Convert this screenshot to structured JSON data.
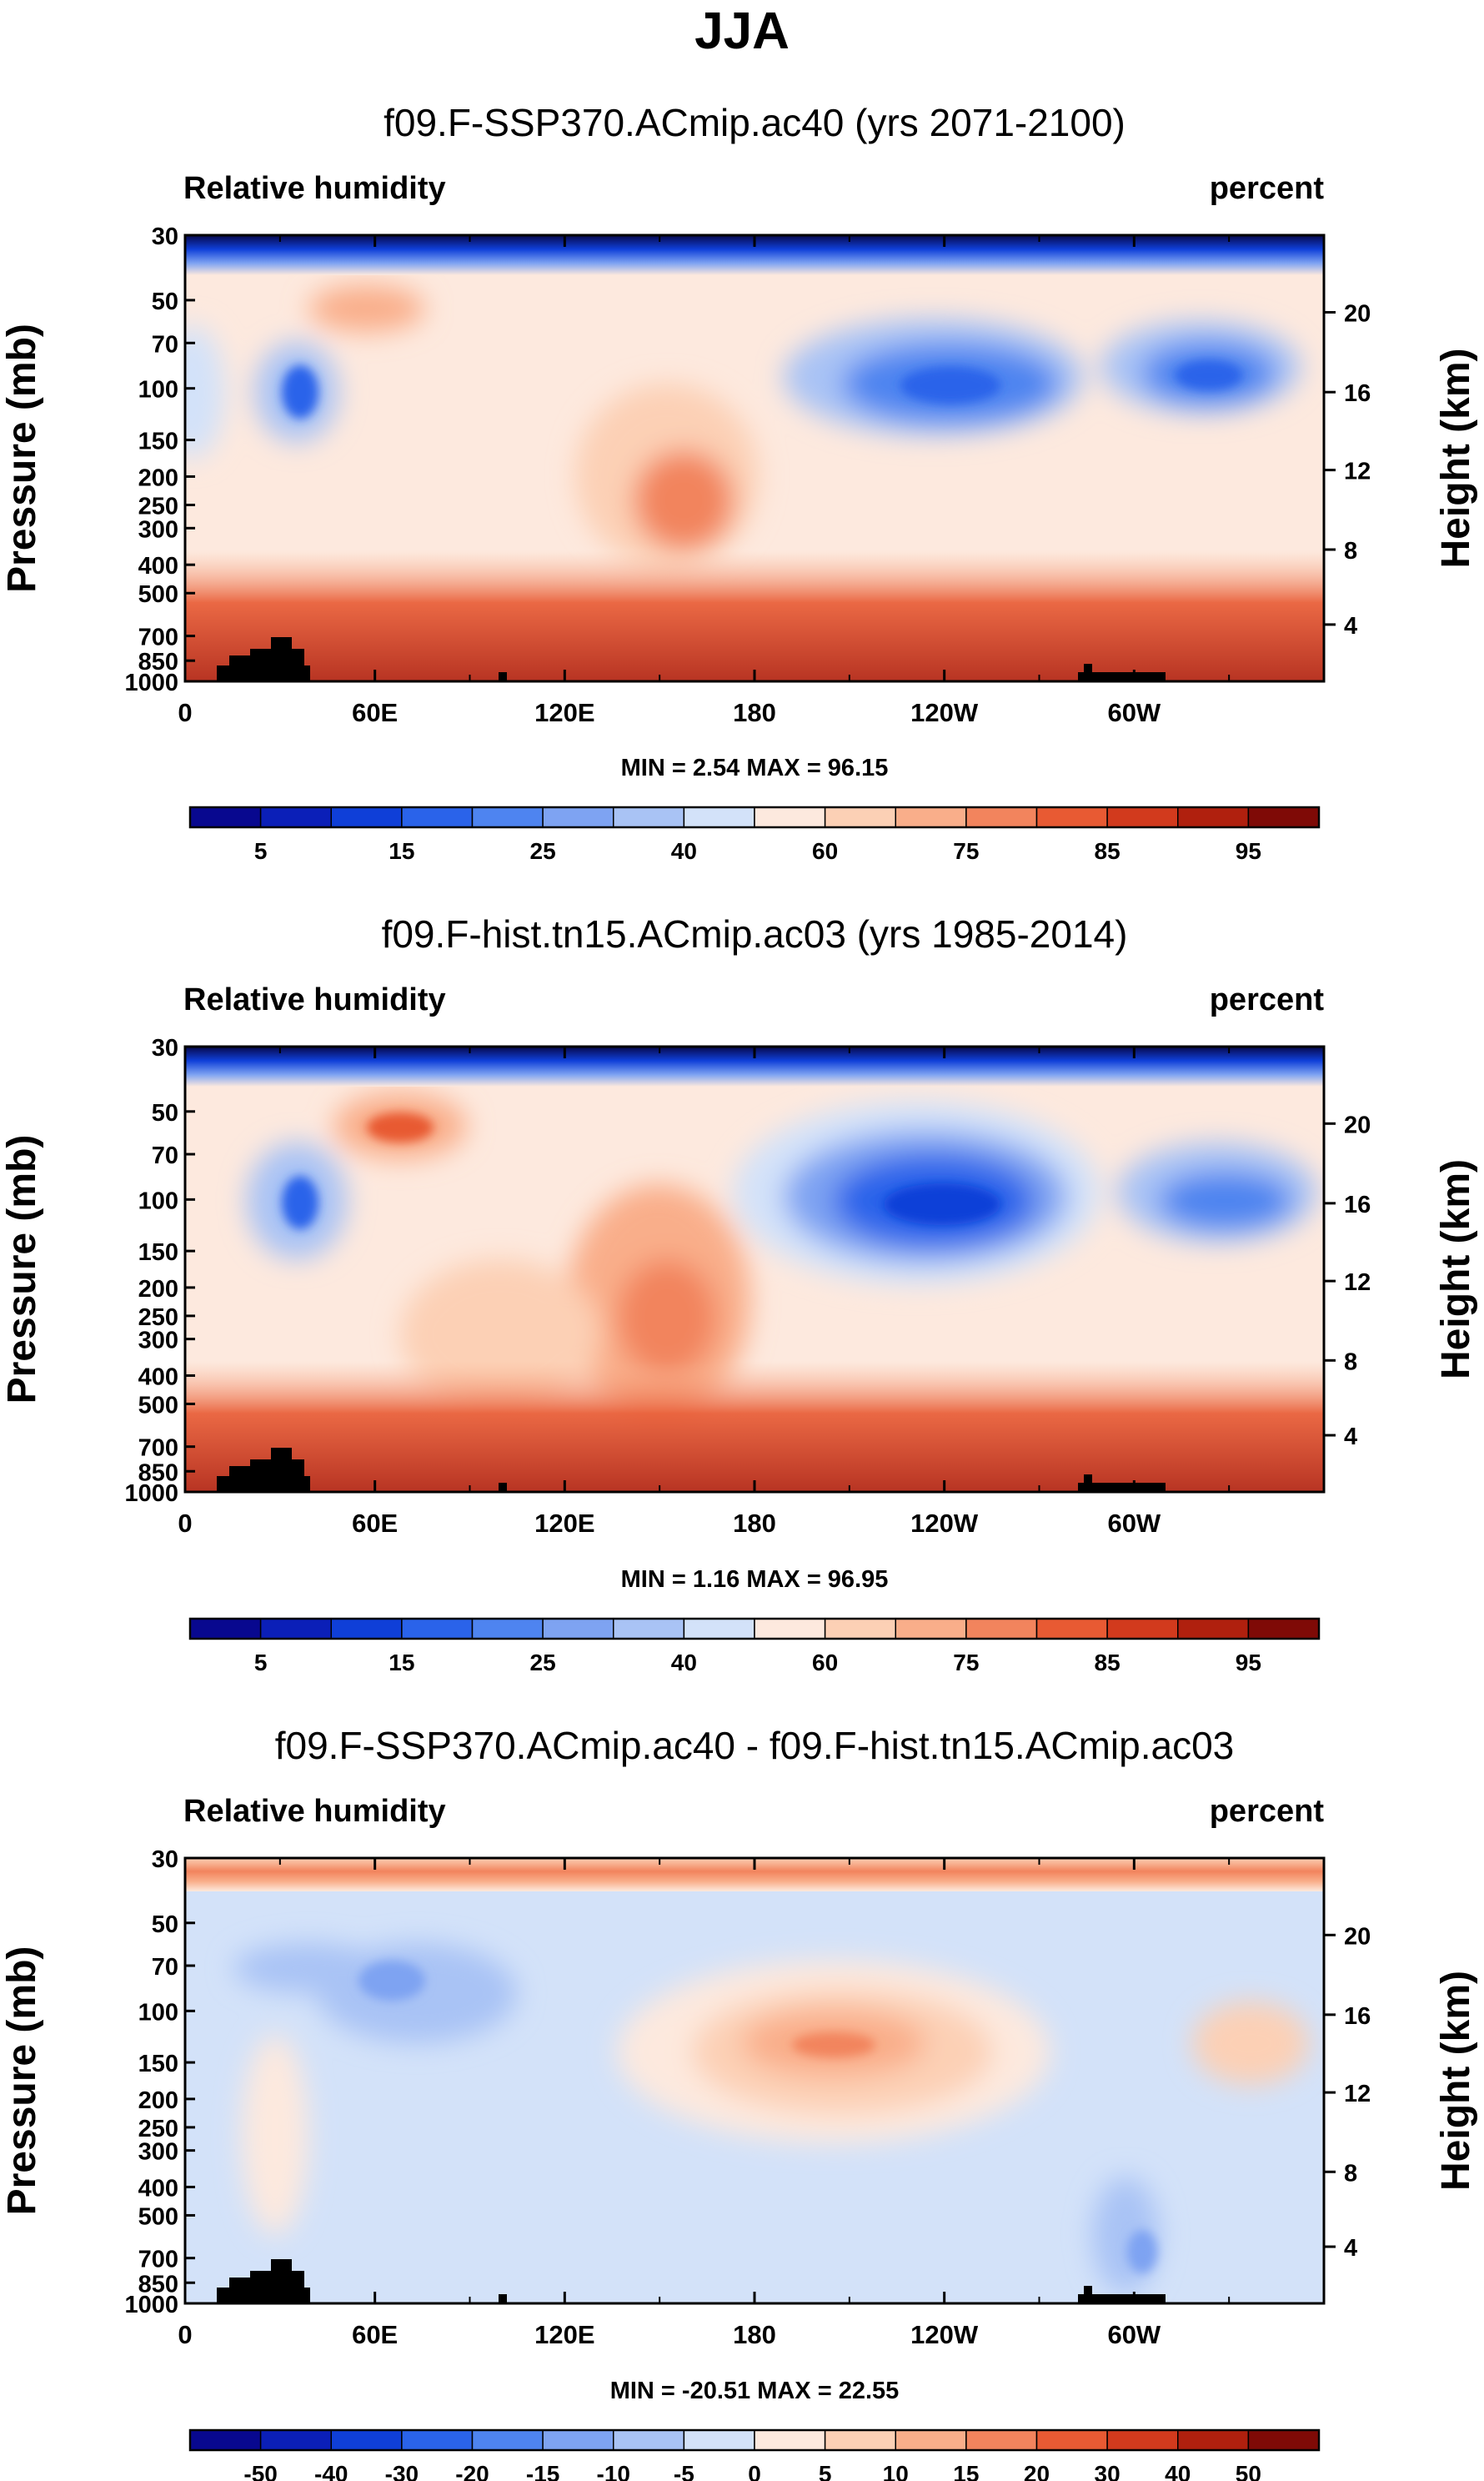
{
  "figure": {
    "season_title": "JJA",
    "colors": {
      "raw_scale": [
        "#08088f",
        "#0b1fb8",
        "#0f3fd8",
        "#2a63ea",
        "#4e84f0",
        "#7ea3f2",
        "#a9c3f5",
        "#d3e2f9",
        "#fde9de",
        "#fcd0b5",
        "#f9ae8a",
        "#f2845d",
        "#e85a33",
        "#d23a1d",
        "#b0200e",
        "#7f0a06"
      ],
      "diff_scale": [
        "#08088f",
        "#0b1fb8",
        "#0f3fd8",
        "#2a63ea",
        "#4e84f0",
        "#7ea3f2",
        "#a9c3f5",
        "#d3e2f9",
        "#fde9de",
        "#fcd0b5",
        "#f9ae8a",
        "#f2845d",
        "#e85a33",
        "#d23a1d",
        "#b0200e",
        "#7f0a06"
      ],
      "topography": "#000000"
    }
  },
  "chart_data": [
    {
      "type": "heatmap",
      "title": "f09.F-SSP370.ACmip.ac40 (yrs 2071-2100)",
      "left_label": "Relative humidity",
      "right_label": "percent",
      "variable": "Relative humidity",
      "units": "percent",
      "ylabel": "Pressure (mb)",
      "ylabel_right": "Height (km)",
      "xlabel": "",
      "x_ticks": [
        "0",
        "60E",
        "120E",
        "180",
        "120W",
        "60W"
      ],
      "x_tick_values": [
        0,
        60,
        120,
        180,
        240,
        300
      ],
      "xlim": [
        0,
        360
      ],
      "y_ticks": [
        "30",
        "50",
        "70",
        "100",
        "150",
        "200",
        "250",
        "300",
        "400",
        "500",
        "700",
        "850",
        "1000"
      ],
      "y_tick_values": [
        30,
        50,
        70,
        100,
        150,
        200,
        250,
        300,
        400,
        500,
        700,
        850,
        1000
      ],
      "ylim": [
        30,
        1000
      ],
      "y_scale": "log",
      "y_ticks_right": [
        "20",
        "16",
        "12",
        "8",
        "4"
      ],
      "y_ticks_right_pressure": [
        55,
        103,
        190,
        355,
        640
      ],
      "stats": "MIN =   2.54  MAX =  96.15",
      "min": 2.54,
      "max": 96.15,
      "colorbar_labels": [
        "5",
        "15",
        "25",
        "40",
        "60",
        "75",
        "85",
        "95"
      ],
      "colorbar_levels": [
        5,
        10,
        15,
        20,
        25,
        30,
        40,
        50,
        60,
        65,
        75,
        80,
        85,
        90,
        95
      ],
      "colorbar_label_positions": [
        1,
        3,
        5,
        7,
        9,
        11,
        13,
        15
      ]
    },
    {
      "type": "heatmap",
      "title": "f09.F-hist.tn15.ACmip.ac03 (yrs 1985-2014)",
      "left_label": "Relative humidity",
      "right_label": "percent",
      "variable": "Relative humidity",
      "units": "percent",
      "ylabel": "Pressure (mb)",
      "ylabel_right": "Height (km)",
      "xlabel": "",
      "x_ticks": [
        "0",
        "60E",
        "120E",
        "180",
        "120W",
        "60W"
      ],
      "x_tick_values": [
        0,
        60,
        120,
        180,
        240,
        300
      ],
      "xlim": [
        0,
        360
      ],
      "y_ticks": [
        "30",
        "50",
        "70",
        "100",
        "150",
        "200",
        "250",
        "300",
        "400",
        "500",
        "700",
        "850",
        "1000"
      ],
      "y_tick_values": [
        30,
        50,
        70,
        100,
        150,
        200,
        250,
        300,
        400,
        500,
        700,
        850,
        1000
      ],
      "ylim": [
        30,
        1000
      ],
      "y_scale": "log",
      "y_ticks_right": [
        "20",
        "16",
        "12",
        "8",
        "4"
      ],
      "y_ticks_right_pressure": [
        55,
        103,
        190,
        355,
        640
      ],
      "stats": "MIN =   1.16  MAX =  96.95",
      "min": 1.16,
      "max": 96.95,
      "colorbar_labels": [
        "5",
        "15",
        "25",
        "40",
        "60",
        "75",
        "85",
        "95"
      ],
      "colorbar_levels": [
        5,
        10,
        15,
        20,
        25,
        30,
        40,
        50,
        60,
        65,
        75,
        80,
        85,
        90,
        95
      ],
      "colorbar_label_positions": [
        1,
        3,
        5,
        7,
        9,
        11,
        13,
        15
      ]
    },
    {
      "type": "heatmap",
      "title": "f09.F-SSP370.ACmip.ac40 - f09.F-hist.tn15.ACmip.ac03",
      "left_label": "Relative humidity",
      "right_label": "percent",
      "variable": "Relative humidity (difference)",
      "units": "percent",
      "ylabel": "Pressure (mb)",
      "ylabel_right": "Height (km)",
      "xlabel": "",
      "x_ticks": [
        "0",
        "60E",
        "120E",
        "180",
        "120W",
        "60W"
      ],
      "x_tick_values": [
        0,
        60,
        120,
        180,
        240,
        300
      ],
      "xlim": [
        0,
        360
      ],
      "y_ticks": [
        "30",
        "50",
        "70",
        "100",
        "150",
        "200",
        "250",
        "300",
        "400",
        "500",
        "700",
        "850",
        "1000"
      ],
      "y_tick_values": [
        30,
        50,
        70,
        100,
        150,
        200,
        250,
        300,
        400,
        500,
        700,
        850,
        1000
      ],
      "ylim": [
        30,
        1000
      ],
      "y_scale": "log",
      "y_ticks_right": [
        "20",
        "16",
        "12",
        "8",
        "4"
      ],
      "y_ticks_right_pressure": [
        55,
        103,
        190,
        355,
        640
      ],
      "stats": "MIN = -20.51  MAX =  22.55",
      "min": -20.51,
      "max": 22.55,
      "colorbar_labels": [
        "-50",
        "-40",
        "-30",
        "-20",
        "-15",
        "-10",
        "-5",
        "0",
        "5",
        "10",
        "15",
        "20",
        "30",
        "40",
        "50"
      ],
      "colorbar_levels": [
        -50,
        -40,
        -30,
        -20,
        -15,
        -10,
        -5,
        0,
        5,
        10,
        15,
        20,
        30,
        40,
        50
      ],
      "colorbar_label_positions": [
        1,
        2,
        3,
        4,
        5,
        6,
        7,
        8,
        9,
        10,
        11,
        12,
        13,
        14,
        15
      ]
    }
  ]
}
